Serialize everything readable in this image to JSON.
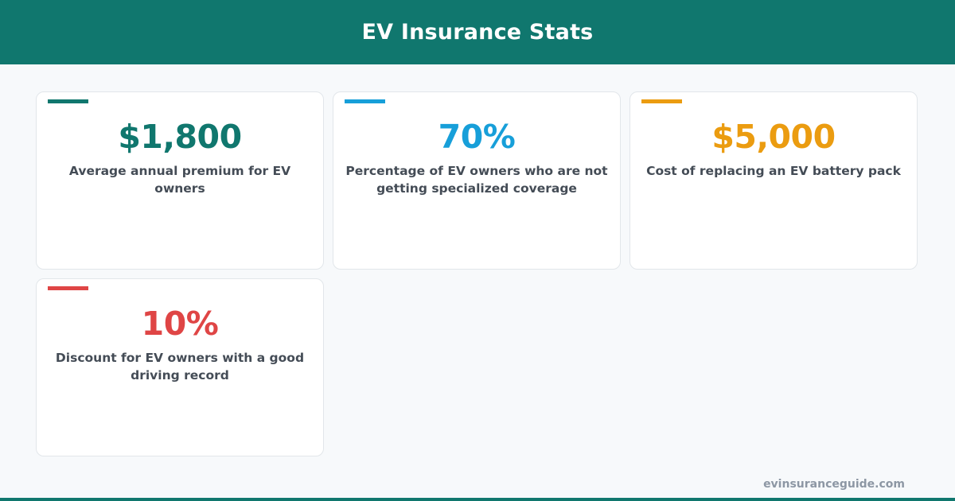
{
  "header": {
    "title": "EV Insurance Stats",
    "background": "#10776e"
  },
  "stats": [
    {
      "value": "$1,800",
      "description": "Average annual premium for EV owners",
      "color": "#10776e"
    },
    {
      "value": "70%",
      "description": "Percentage of EV owners who are not getting specialized coverage",
      "color": "#179fd9"
    },
    {
      "value": "$5,000",
      "description": "Cost of replacing an EV battery pack",
      "color": "#eb9c10"
    },
    {
      "value": "10%",
      "description": "Discount for EV owners with a good driving record",
      "color": "#df4545"
    }
  ],
  "footer": {
    "url": "evinsuranceguide.com"
  }
}
